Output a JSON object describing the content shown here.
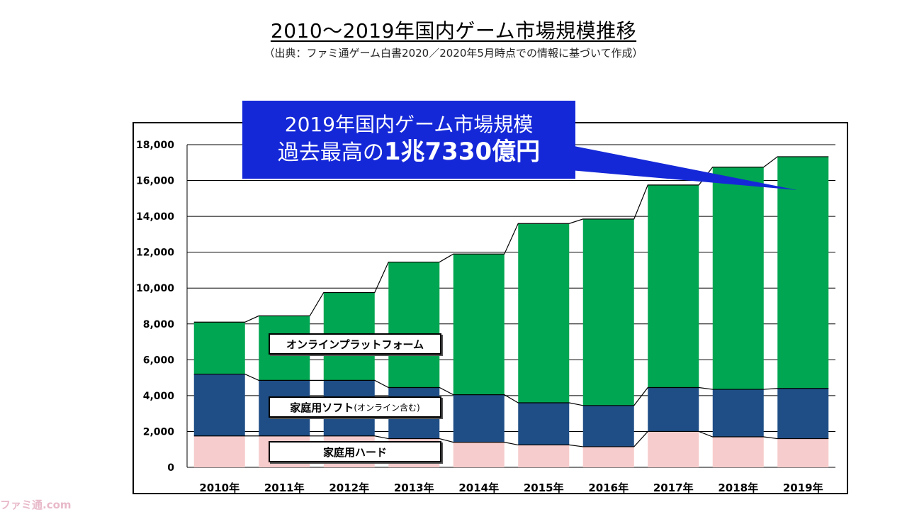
{
  "title": "2010～2019年国内ゲーム市場規模推移",
  "subtitle": "（出典：ファミ通ゲーム白書2020／2020年5月時点での情報に基づいて作成）",
  "callout": {
    "line1": "2019年国内ゲーム市場規模",
    "line2_prefix": "過去最高の",
    "line2_value": "1兆7330億円"
  },
  "labels": {
    "online": "オンラインプラットフォーム",
    "soft": "家庭用ソフト",
    "soft_note": "(オンライン含む)",
    "hard": "家庭用ハード"
  },
  "watermark": "ファミ通.com",
  "colors": {
    "hard": "#f7cccc",
    "soft": "#1f4e86",
    "online": "#00a651",
    "callout": "#1528d8"
  },
  "chart_data": {
    "type": "bar",
    "stacked": true,
    "categories": [
      "2010年",
      "2011年",
      "2012年",
      "2013年",
      "2014年",
      "2015年",
      "2016年",
      "2017年",
      "2018年",
      "2019年"
    ],
    "series": [
      {
        "name": "家庭用ハード",
        "values": [
          1750,
          1750,
          1750,
          1600,
          1400,
          1250,
          1150,
          2000,
          1700,
          1600
        ]
      },
      {
        "name": "家庭用ソフト(オンライン含む)",
        "values": [
          3450,
          3100,
          3100,
          2850,
          2650,
          2350,
          2300,
          2450,
          2650,
          2800
        ]
      },
      {
        "name": "オンラインプラットフォーム",
        "values": [
          2900,
          3600,
          4900,
          7000,
          7850,
          10000,
          10400,
          11300,
          12400,
          12930
        ]
      }
    ],
    "totals": [
      8100,
      8450,
      9750,
      11450,
      11900,
      13600,
      13850,
      15750,
      16750,
      17330
    ],
    "ylim": [
      0,
      18000
    ],
    "yticks": [
      "0",
      "2,000",
      "4,000",
      "6,000",
      "8,000",
      "10,000",
      "12,000",
      "14,000",
      "16,000",
      "18,000"
    ],
    "grid": true
  }
}
